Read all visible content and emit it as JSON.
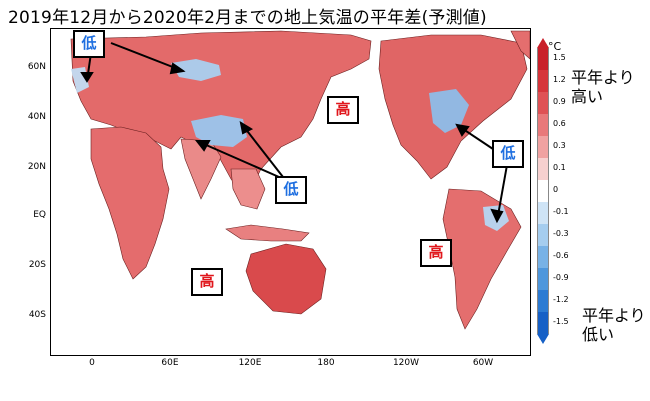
{
  "title": "2019年12月から2020年2月までの地上気温の平年差(予測値)",
  "lat_labels": [
    "60N",
    "40N",
    "20N",
    "EQ",
    "20S",
    "40S"
  ],
  "lon_labels": [
    "0",
    "60E",
    "120E",
    "180",
    "120W",
    "60W"
  ],
  "colorbar": {
    "unit": "°C",
    "ticks": [
      "1.5",
      "1.2",
      "0.9",
      "0.6",
      "0.3",
      "0.1",
      "0",
      "-0.1",
      "-0.3",
      "-0.6",
      "-0.9",
      "-1.2",
      "-1.5"
    ],
    "top_caption": [
      "平年より",
      "高い"
    ],
    "bottom_caption": [
      "平年より",
      "低い"
    ],
    "colors": [
      "#c9202a",
      "#d6363b",
      "#df5255",
      "#e8797a",
      "#f0a2a1",
      "#f7d0cf",
      "#ffffff",
      "#cfe4f6",
      "#a5cdef",
      "#78b2e6",
      "#4f97dc",
      "#2c7bd3",
      "#1660c6"
    ]
  },
  "labels": {
    "low_mark": "低",
    "high_mark": "高"
  }
}
